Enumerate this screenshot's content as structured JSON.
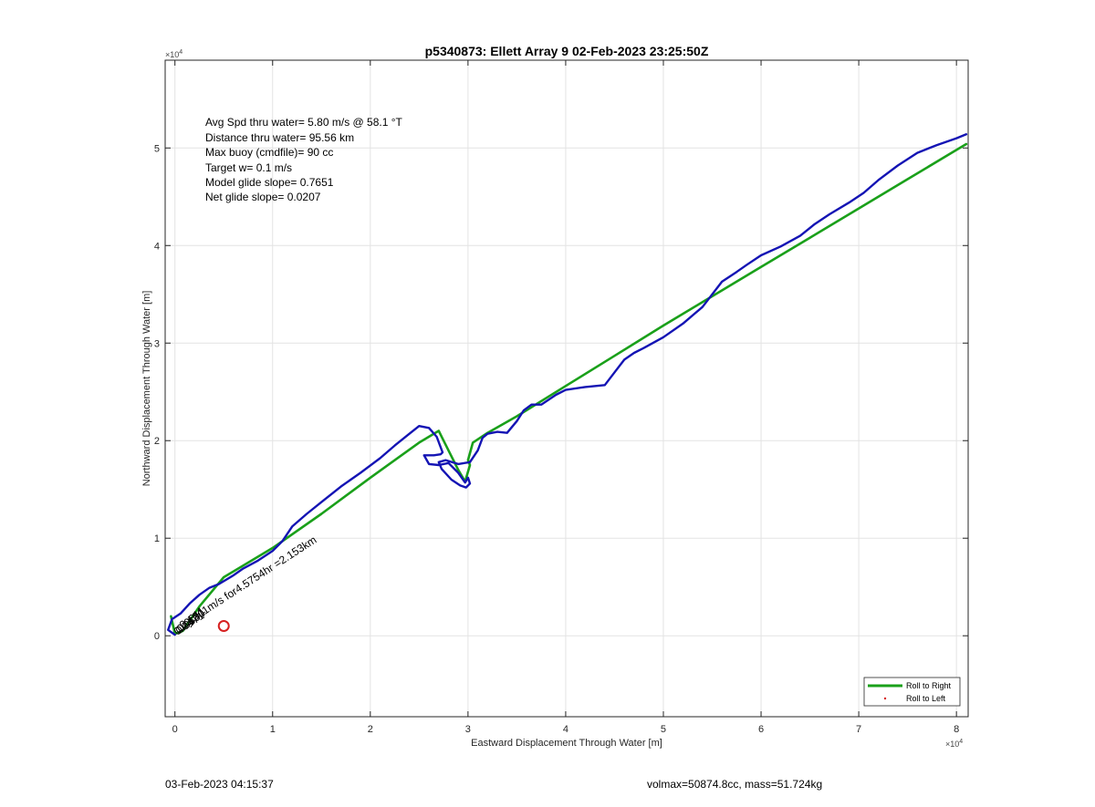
{
  "chart_data": {
    "type": "line",
    "title": "p5340873: Ellett Array 9 02-Feb-2023 23:25:50Z",
    "xlabel": "Eastward Displacement Through Water [m]",
    "ylabel": "Northward Displacement Through Water [m]",
    "x_exponent_label": "×10",
    "x_exponent_power": "4",
    "y_exponent_label": "×10",
    "y_exponent_power": "4",
    "xlim": [
      -1000,
      81200
    ],
    "ylim": [
      -8300,
      59000
    ],
    "xticks": [
      0,
      10000,
      20000,
      30000,
      40000,
      50000,
      60000,
      70000,
      80000
    ],
    "xtick_labels": [
      "0",
      "1",
      "2",
      "3",
      "4",
      "5",
      "6",
      "7",
      "8"
    ],
    "yticks": [
      0,
      10000,
      20000,
      30000,
      40000,
      50000
    ],
    "ytick_labels": [
      "0",
      "1",
      "2",
      "3",
      "4",
      "5"
    ],
    "grid": true,
    "legend_position": "bottom-right",
    "series": [
      {
        "name": "Roll to Right",
        "color": "#1aa01a",
        "style": "line",
        "x": [
          -400,
          0,
          800,
          2500,
          5000,
          10000,
          15000,
          20000,
          25000,
          27000,
          27500,
          29000,
          29700,
          30200,
          30000,
          30500,
          32000,
          35000,
          40000,
          45000,
          50000,
          55000,
          60000,
          65000,
          70000,
          75000,
          80000,
          81000
        ],
        "y": [
          2000,
          200,
          500,
          3000,
          6000,
          9000,
          12500,
          16200,
          19800,
          21000,
          20000,
          17000,
          15800,
          17500,
          18000,
          19800,
          20800,
          22500,
          25600,
          28700,
          31800,
          34800,
          37800,
          40800,
          43800,
          46800,
          49800,
          50400
        ]
      },
      {
        "name": "Roll to Left",
        "color": "#d62020",
        "style": "point",
        "x": [
          5000
        ],
        "y": [
          1000
        ]
      },
      {
        "name": "",
        "color": "#1414b4",
        "style": "line",
        "x": [
          0,
          -700,
          -300,
          600,
          1500,
          2500,
          3500,
          4500,
          6000,
          7000,
          8500,
          10000,
          11000,
          12000,
          13500,
          15000,
          17000,
          19000,
          21000,
          22500,
          24000,
          25000,
          26000,
          26800,
          27400,
          27200,
          26500,
          25500,
          26000,
          27000,
          28000,
          29000,
          29700,
          30000,
          30200,
          29800,
          29200,
          28300,
          27300,
          27000,
          27700,
          29000,
          30200,
          31000,
          31500,
          32000,
          33000,
          34000,
          35000,
          35700,
          36500,
          37500,
          39000,
          40000,
          42000,
          44000,
          45000,
          46000,
          47000,
          48000,
          50000,
          52000,
          54000,
          56000,
          57500,
          58500,
          60000,
          62000,
          64000,
          65500,
          67000,
          69000,
          70500,
          72000,
          74000,
          76000,
          78000,
          80000,
          81000
        ],
        "y": [
          100,
          600,
          1700,
          2300,
          3300,
          4200,
          4900,
          5300,
          6200,
          6900,
          7700,
          8700,
          9700,
          11200,
          12500,
          13700,
          15300,
          16700,
          18200,
          19500,
          20700,
          21500,
          21300,
          20400,
          18800,
          18600,
          18500,
          18500,
          17600,
          17500,
          17700,
          16700,
          15700,
          16200,
          15600,
          15200,
          15400,
          16000,
          17100,
          17800,
          18000,
          17600,
          17800,
          19000,
          20300,
          20700,
          20900,
          20800,
          22000,
          23100,
          23700,
          23700,
          24700,
          25200,
          25500,
          25700,
          27000,
          28300,
          29000,
          29500,
          30600,
          32000,
          33700,
          36300,
          37300,
          38000,
          39000,
          39900,
          41000,
          42200,
          43200,
          44400,
          45400,
          46700,
          48200,
          49500,
          50300,
          51000,
          51400
        ]
      }
    ],
    "annotations": [
      {
        "text": "Avg Spd thru water=  5.80 m/s @  58.1 °T"
      },
      {
        "text": "Distance thru water= 95.56 km"
      },
      {
        "text": "Max buoy (cmdfile)= 90 cc"
      },
      {
        "text": "Target w= 0.1 m/s"
      },
      {
        "text": "Model glide slope= 0.7651"
      },
      {
        "text": "Net glide slope= 0.0207"
      },
      {
        "text": "0.1311m/s for4.5754hr =2.153km"
      },
      {
        "text": "0.0471"
      },
      {
        "text": "0.0630"
      },
      {
        "text": "0.0611"
      }
    ]
  },
  "footer": {
    "left": "03-Feb-2023 04:15:37",
    "right": "volmax=50874.8cc, mass=51.724kg"
  }
}
